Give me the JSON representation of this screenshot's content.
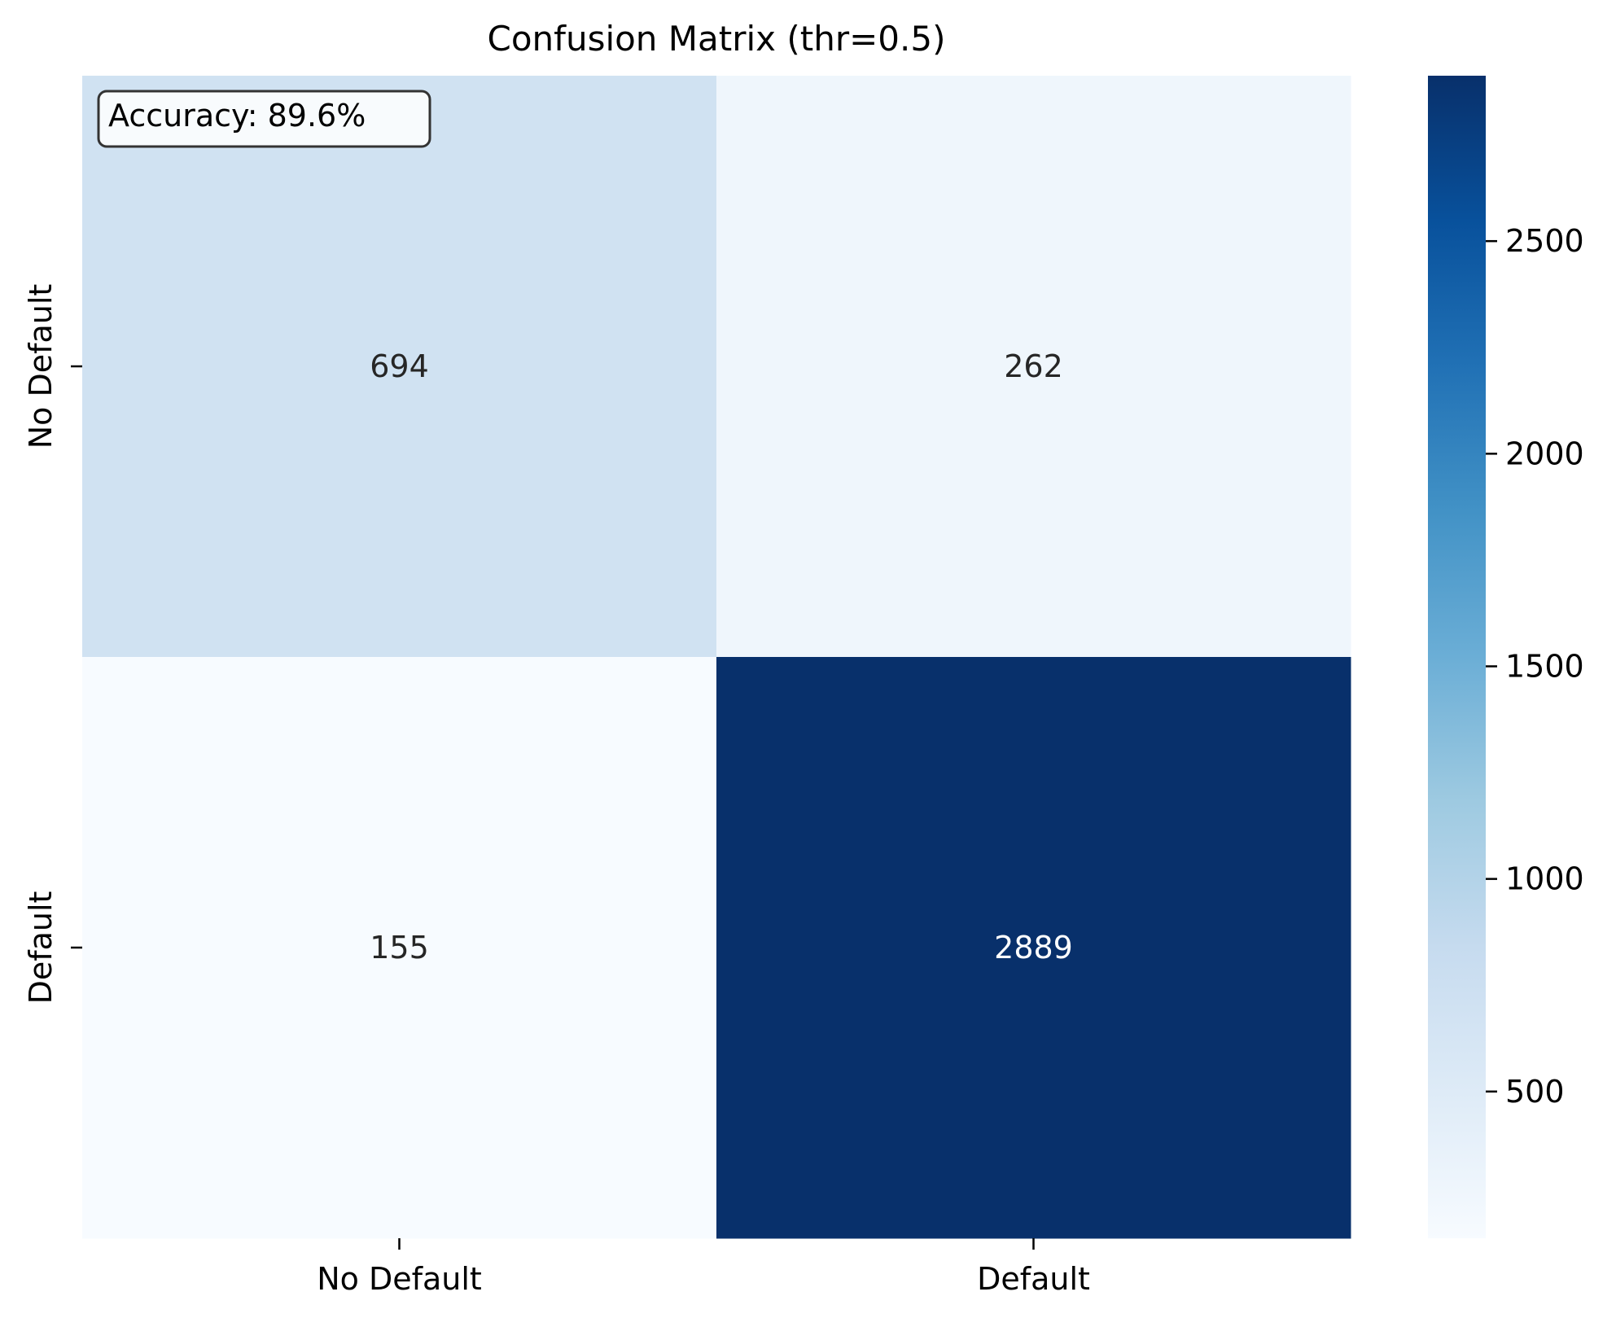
{
  "chart_data": {
    "type": "heatmap",
    "title": "Confusion Matrix (thr=0.5)",
    "xlabel": "",
    "ylabel": "",
    "row_labels": [
      "No Default",
      "Default"
    ],
    "col_labels": [
      "No Default",
      "Default"
    ],
    "values": [
      [
        694,
        262
      ],
      [
        155,
        2889
      ]
    ],
    "cell_text": [
      [
        "694",
        "262"
      ],
      [
        "155",
        "2889"
      ]
    ],
    "colormap": "Blues",
    "color_range": [
      155,
      2889
    ],
    "colorbar_ticks": [
      500,
      1000,
      1500,
      2000,
      2500
    ],
    "colorbar_tick_labels": [
      "500",
      "1000",
      "1500",
      "2000",
      "2500"
    ],
    "annotation": "Accuracy: 89.6%",
    "grid": false
  }
}
